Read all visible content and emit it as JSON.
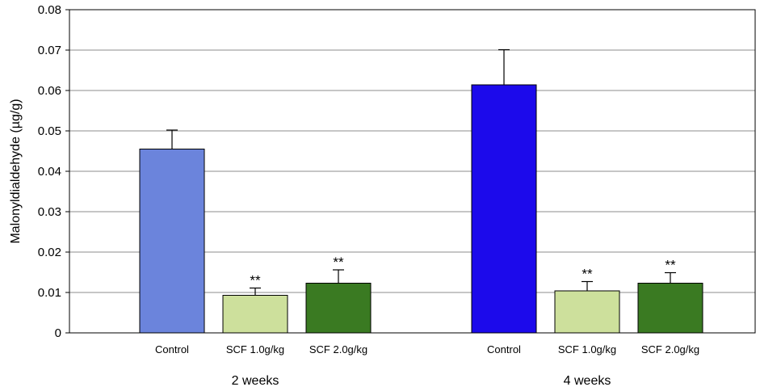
{
  "chart_data": {
    "type": "bar",
    "title": "",
    "ylabel": "Malonyldialdehyde (µg/g)",
    "xlabel": "",
    "ylim": [
      0,
      0.08
    ],
    "yticks": [
      "0",
      "0.01",
      "0.02",
      "0.03",
      "0.04",
      "0.05",
      "0.06",
      "0.07",
      "0.08"
    ],
    "grid": true,
    "groups": [
      {
        "label": "2 weeks",
        "bars": [
          {
            "category": "Control",
            "value": 0.0455,
            "error": 0.0047,
            "significance": "",
            "color": "#6b84dc"
          },
          {
            "category": "SCF 1.0g/kg",
            "value": 0.0093,
            "error": 0.0018,
            "significance": "**",
            "color": "#cde09c"
          },
          {
            "category": "SCF 2.0g/kg",
            "value": 0.0123,
            "error": 0.0033,
            "significance": "**",
            "color": "#3a7a22"
          }
        ]
      },
      {
        "label": "4 weeks",
        "bars": [
          {
            "category": "Control",
            "value": 0.0614,
            "error": 0.0087,
            "significance": "",
            "color": "#1c0aeb"
          },
          {
            "category": "SCF 1.0g/kg",
            "value": 0.0104,
            "error": 0.0023,
            "significance": "**",
            "color": "#cde09c"
          },
          {
            "category": "SCF 2.0g/kg",
            "value": 0.0123,
            "error": 0.0026,
            "significance": "**",
            "color": "#3a7a22"
          }
        ]
      }
    ]
  }
}
